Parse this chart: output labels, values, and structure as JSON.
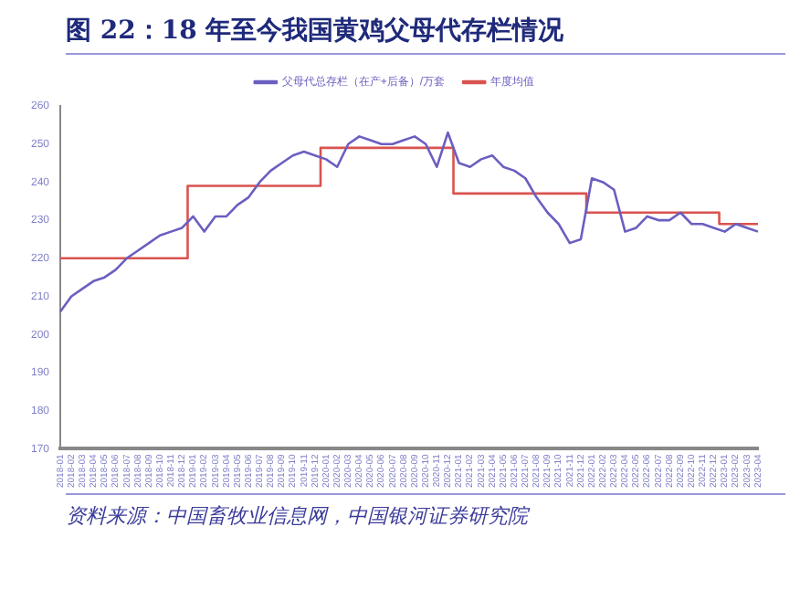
{
  "chart_data": {
    "type": "line",
    "title": "图 22：18 年至今我国黄鸡父母代存栏情况",
    "categories": [
      "2018-01",
      "2018-02",
      "2018-03",
      "2018-04",
      "2018-05",
      "2018-06",
      "2018-07",
      "2018-08",
      "2018-09",
      "2018-10",
      "2018-11",
      "2018-12",
      "2019-01",
      "2019-02",
      "2019-03",
      "2019-04",
      "2019-05",
      "2019-06",
      "2019-07",
      "2019-08",
      "2019-09",
      "2019-10",
      "2019-11",
      "2019-12",
      "2020-01",
      "2020-02",
      "2020-03",
      "2020-04",
      "2020-05",
      "2020-06",
      "2020-07",
      "2020-08",
      "2020-09",
      "2020-10",
      "2020-11",
      "2020-12",
      "2021-01",
      "2021-02",
      "2021-03",
      "2021-04",
      "2021-05",
      "2021-06",
      "2021-07",
      "2021-08",
      "2021-09",
      "2021-10",
      "2021-11",
      "2021-12",
      "2022-01",
      "2022-02",
      "2022-03",
      "2022-04",
      "2022-05",
      "2022-06",
      "2022-07",
      "2022-08",
      "2022-09",
      "2022-10",
      "2022-11",
      "2022-12",
      "2023-01",
      "2023-02",
      "2023-03",
      "2023-04"
    ],
    "series": [
      {
        "name": "父母代总存栏（在产+后备）/万套",
        "color": "#6a5fc0",
        "values": [
          206,
          210,
          212,
          214,
          215,
          217,
          220,
          222,
          224,
          226,
          227,
          228,
          231,
          227,
          231,
          231,
          234,
          236,
          240,
          243,
          245,
          247,
          248,
          247,
          246,
          244,
          250,
          252,
          251,
          250,
          250,
          251,
          252,
          250,
          244,
          253,
          245,
          244,
          246,
          247,
          244,
          243,
          241,
          236,
          232,
          229,
          224,
          225,
          241,
          240,
          238,
          227,
          228,
          231,
          230,
          230,
          232,
          229,
          229,
          228,
          227,
          229,
          228,
          227
        ]
      },
      {
        "name": "年度均值",
        "type": "step",
        "color": "#d9534f",
        "values": [
          220,
          220,
          220,
          220,
          220,
          220,
          220,
          220,
          220,
          220,
          220,
          220,
          239,
          239,
          239,
          239,
          239,
          239,
          239,
          239,
          239,
          239,
          239,
          239,
          249,
          249,
          249,
          249,
          249,
          249,
          249,
          249,
          249,
          249,
          249,
          249,
          237,
          237,
          237,
          237,
          237,
          237,
          237,
          237,
          237,
          237,
          237,
          237,
          232,
          232,
          232,
          232,
          232,
          232,
          232,
          232,
          232,
          232,
          232,
          232,
          229,
          229,
          229,
          229
        ]
      }
    ],
    "ylim": [
      170,
      260
    ],
    "yticks": [
      170,
      180,
      190,
      200,
      210,
      220,
      230,
      240,
      250,
      260
    ],
    "grid": false,
    "legend": "top",
    "marker": "none",
    "annotations": [
      "资料来源：中国畜牧业信息网，中国银河证券研究院"
    ]
  }
}
